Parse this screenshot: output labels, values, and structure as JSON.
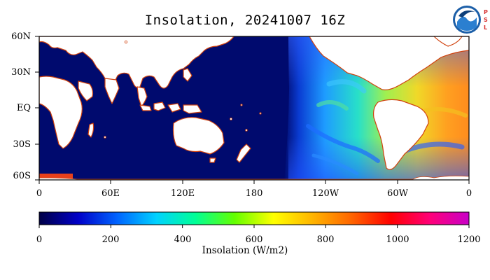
{
  "title": "Insolation, 20241007 16Z",
  "logo": {
    "org_text": "NOAA",
    "side_text": [
      "P",
      "S",
      "L"
    ]
  },
  "map": {
    "lat_labels": [
      "60N",
      "30N",
      "EQ",
      "30S",
      "60S"
    ],
    "lon_labels": [
      "0",
      "60E",
      "120E",
      "180",
      "120W",
      "60W",
      "0"
    ],
    "lat_range": [
      -60,
      60
    ],
    "lon_range": [
      0,
      360
    ],
    "ocean_night_color": "#000a6e",
    "land_color": "#ffffff",
    "coast_color": "#d1420e"
  },
  "colorbar": {
    "title": "Insolation (W/m2)",
    "range": [
      0,
      1200
    ],
    "ticks": [
      "0",
      "200",
      "400",
      "600",
      "800",
      "1000",
      "1200"
    ],
    "colors": [
      "#000046",
      "#0000c8",
      "#0064ff",
      "#00d2ff",
      "#00ff96",
      "#64ff00",
      "#ffff00",
      "#ffb400",
      "#ff6400",
      "#ff0000",
      "#ff0078",
      "#c800c8"
    ]
  }
}
